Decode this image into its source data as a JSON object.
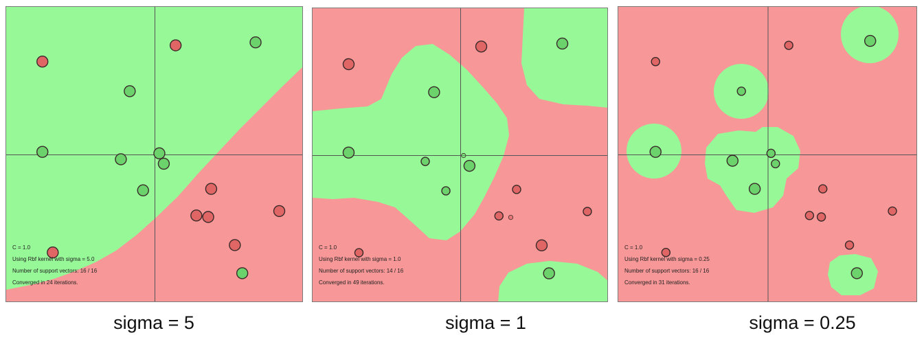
{
  "panels": [
    {
      "caption": "sigma = 5",
      "info": {
        "c_line": "C = 1.0",
        "kernel_line": "Using Rbf kernel with sigma = 5.0",
        "sv_line": "Number of support vectors: 16 / 16",
        "iter_line": "Converged in 24 iterations."
      },
      "background_color": "#F89797",
      "region_color": "#97F897",
      "points": [
        {
          "x": -0.76,
          "y": 0.63,
          "class": "red",
          "size": "large"
        },
        {
          "x": 0.14,
          "y": 0.74,
          "class": "red",
          "size": "large"
        },
        {
          "x": 0.68,
          "y": 0.76,
          "class": "green",
          "size": "large"
        },
        {
          "x": -0.17,
          "y": 0.43,
          "class": "green",
          "size": "large"
        },
        {
          "x": -0.76,
          "y": 0.02,
          "class": "green",
          "size": "large"
        },
        {
          "x": -0.23,
          "y": -0.03,
          "class": "green",
          "size": "large"
        },
        {
          "x": 0.03,
          "y": 0.01,
          "class": "green",
          "size": "large"
        },
        {
          "x": 0.06,
          "y": -0.06,
          "class": "green",
          "size": "large"
        },
        {
          "x": -0.08,
          "y": -0.24,
          "class": "green",
          "size": "large"
        },
        {
          "x": 0.38,
          "y": -0.23,
          "class": "red",
          "size": "large"
        },
        {
          "x": 0.28,
          "y": -0.41,
          "class": "red",
          "size": "large"
        },
        {
          "x": 0.36,
          "y": -0.42,
          "class": "red",
          "size": "large"
        },
        {
          "x": 0.84,
          "y": -0.38,
          "class": "red",
          "size": "large"
        },
        {
          "x": 0.54,
          "y": -0.61,
          "class": "red",
          "size": "large"
        },
        {
          "x": -0.69,
          "y": -0.66,
          "class": "red",
          "size": "large"
        },
        {
          "x": 0.59,
          "y": -0.8,
          "class": "green",
          "size": "large"
        }
      ]
    },
    {
      "caption": "sigma = 1",
      "info": {
        "c_line": "C = 1.0",
        "kernel_line": "Using Rbf kernel with sigma = 1.0",
        "sv_line": "Number of support vectors: 14 / 16",
        "iter_line": "Converged in 49 iterations."
      },
      "background_color": "#F89797",
      "region_color": "#97F897",
      "points": [
        {
          "x": -0.76,
          "y": 0.62,
          "class": "red",
          "size": "large"
        },
        {
          "x": 0.14,
          "y": 0.74,
          "class": "red",
          "size": "large"
        },
        {
          "x": 0.69,
          "y": 0.76,
          "class": "green",
          "size": "large"
        },
        {
          "x": -0.18,
          "y": 0.43,
          "class": "green",
          "size": "large"
        },
        {
          "x": -0.76,
          "y": 0.02,
          "class": "green",
          "size": "large"
        },
        {
          "x": -0.24,
          "y": -0.04,
          "class": "green",
          "size": "medium"
        },
        {
          "x": 0.02,
          "y": 0.0,
          "class": "green",
          "size": "tiny"
        },
        {
          "x": 0.06,
          "y": -0.07,
          "class": "green",
          "size": "large"
        },
        {
          "x": -0.1,
          "y": -0.24,
          "class": "green",
          "size": "medium"
        },
        {
          "x": 0.38,
          "y": -0.23,
          "class": "red",
          "size": "medium"
        },
        {
          "x": 0.26,
          "y": -0.41,
          "class": "red",
          "size": "medium"
        },
        {
          "x": 0.34,
          "y": -0.42,
          "class": "red",
          "size": "tiny"
        },
        {
          "x": 0.86,
          "y": -0.38,
          "class": "red",
          "size": "medium"
        },
        {
          "x": 0.55,
          "y": -0.61,
          "class": "red",
          "size": "large"
        },
        {
          "x": -0.69,
          "y": -0.66,
          "class": "red",
          "size": "medium"
        },
        {
          "x": 0.6,
          "y": -0.8,
          "class": "green",
          "size": "large"
        }
      ]
    },
    {
      "caption": "sigma = 0.25",
      "info": {
        "c_line": "C = 1.0",
        "kernel_line": "Using Rbf kernel with sigma = 0.25",
        "sv_line": "Number of support vectors: 16 / 16",
        "iter_line": "Converged in 31 iterations."
      },
      "background_color": "#F89797",
      "region_color": "#97F897",
      "points": [
        {
          "x": -0.76,
          "y": 0.63,
          "class": "red",
          "size": "medium"
        },
        {
          "x": 0.14,
          "y": 0.74,
          "class": "red",
          "size": "medium"
        },
        {
          "x": 0.69,
          "y": 0.77,
          "class": "green",
          "size": "large"
        },
        {
          "x": -0.18,
          "y": 0.43,
          "class": "green",
          "size": "medium"
        },
        {
          "x": -0.76,
          "y": 0.02,
          "class": "green",
          "size": "large"
        },
        {
          "x": -0.24,
          "y": -0.04,
          "class": "green",
          "size": "large"
        },
        {
          "x": 0.02,
          "y": 0.01,
          "class": "green",
          "size": "medium"
        },
        {
          "x": 0.05,
          "y": -0.06,
          "class": "green",
          "size": "medium"
        },
        {
          "x": -0.09,
          "y": -0.23,
          "class": "green",
          "size": "large"
        },
        {
          "x": 0.37,
          "y": -0.23,
          "class": "red",
          "size": "medium"
        },
        {
          "x": 0.28,
          "y": -0.41,
          "class": "red",
          "size": "medium"
        },
        {
          "x": 0.36,
          "y": -0.42,
          "class": "red",
          "size": "medium"
        },
        {
          "x": 0.84,
          "y": -0.38,
          "class": "red",
          "size": "medium"
        },
        {
          "x": 0.55,
          "y": -0.61,
          "class": "red",
          "size": "medium"
        },
        {
          "x": -0.69,
          "y": -0.66,
          "class": "red",
          "size": "medium"
        },
        {
          "x": 0.6,
          "y": -0.8,
          "class": "green",
          "size": "large"
        }
      ]
    }
  ],
  "colors": {
    "red_point": "#E06565",
    "green_point": "#6CD26C",
    "point_outline": "#3a2a2a",
    "axis": "#555555"
  }
}
